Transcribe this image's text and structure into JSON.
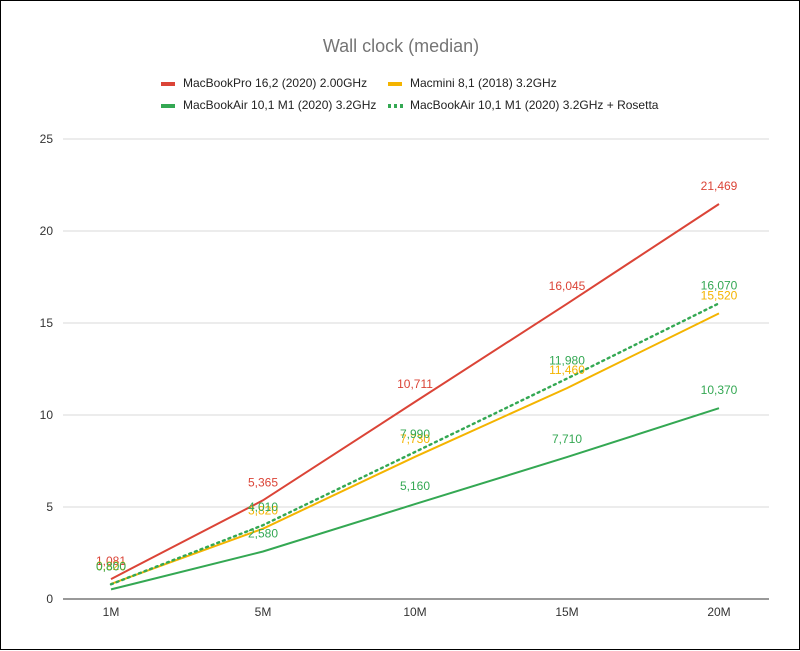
{
  "chart_data": {
    "type": "line",
    "title": "Wall clock (median)",
    "xlabel": "",
    "ylabel": "",
    "categories": [
      "1M",
      "5M",
      "10M",
      "15M",
      "20M"
    ],
    "ylim": [
      0,
      25
    ],
    "yticks": [
      "0",
      "5",
      "10",
      "15",
      "20",
      "25"
    ],
    "grid": true,
    "legend_position": "top",
    "series": [
      {
        "name": "MacBookPro 16,2 (2020) 2.00GHz",
        "color": "#db4437",
        "style": "solid",
        "values": [
          1.081,
          5.365,
          10.711,
          16.045,
          21.469
        ],
        "labels": [
          "1,081",
          "5,365",
          "10,711",
          "16,045",
          "21,469"
        ]
      },
      {
        "name": "Macmini 8,1 (2018) 3.2GHz",
        "color": "#f4b400",
        "style": "solid",
        "values": [
          0.82,
          3.82,
          7.73,
          11.46,
          15.52
        ],
        "labels": [
          "0,820",
          "3,820",
          "7,730",
          "11,460",
          "15,520"
        ]
      },
      {
        "name": "MacBookAir 10,1 M1 (2020) 3.2GHz",
        "color": "#34a853",
        "style": "solid",
        "values": [
          0.52,
          2.58,
          5.16,
          7.71,
          10.37
        ],
        "labels": [
          "",
          "2,580",
          "5,160",
          "7,710",
          "10,370"
        ]
      },
      {
        "name": "MacBookAir 10,1 M1 (2020) 3.2GHz + Rosetta",
        "color": "#34a853",
        "style": "dotted",
        "values": [
          0.8,
          4.01,
          7.99,
          11.98,
          16.07
        ],
        "labels": [
          "0,800",
          "4,010",
          "7,990",
          "11,980",
          "16,070"
        ]
      }
    ]
  }
}
